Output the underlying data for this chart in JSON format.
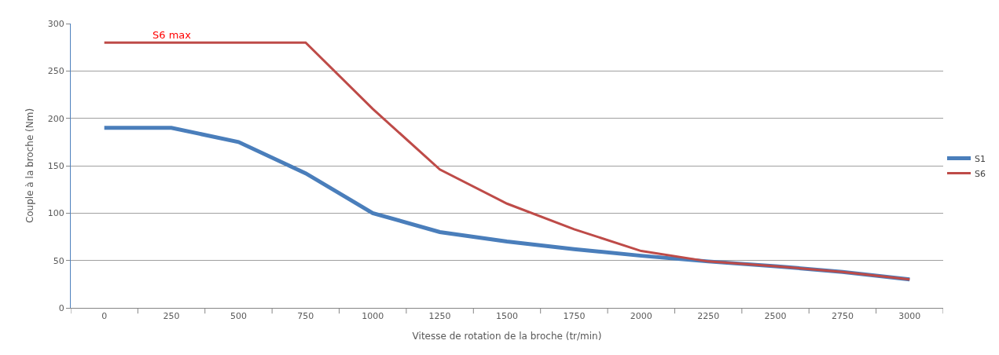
{
  "chart_data": {
    "type": "line",
    "xlabel": "Vitesse de rotation de la broche (tr/min)",
    "ylabel": "Couple à la broche (Nm)",
    "categories": [
      "0",
      "250",
      "500",
      "750",
      "1000",
      "1250",
      "1500",
      "1750",
      "2000",
      "2250",
      "2500",
      "2750",
      "3000"
    ],
    "series": [
      {
        "name": "S1",
        "color": "#4a7ebb",
        "values": [
          190,
          190,
          175,
          142,
          100,
          80,
          70,
          62,
          55,
          49,
          44,
          38,
          30
        ]
      },
      {
        "name": "S6",
        "color": "#be4b48",
        "values": [
          280,
          280,
          280,
          280,
          210,
          146,
          110,
          83,
          60,
          49,
          44,
          38,
          30
        ]
      }
    ],
    "ylim": [
      0,
      300
    ],
    "yticks": [
      0,
      50,
      100,
      150,
      200,
      250,
      300
    ],
    "grid": "y",
    "legend": "right",
    "marker": "none",
    "line_style": "solid",
    "annotations": [
      {
        "text": "S6 max",
        "x": "250",
        "y": 280
      }
    ]
  }
}
